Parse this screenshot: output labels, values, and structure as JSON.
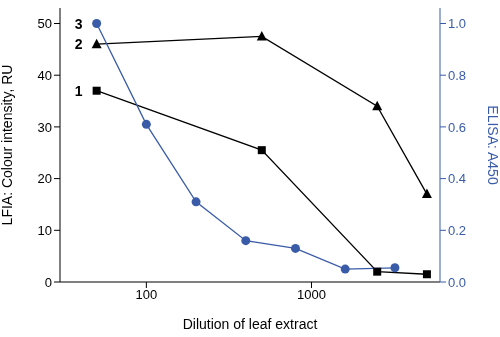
{
  "chart_data": {
    "type": "line",
    "x_label": "Dilution of leaf extract",
    "y_label": "LFIA: Colour intensity, RU",
    "y2_label": "ELISA: A450",
    "log": "x",
    "grid": false,
    "xlim": [
      30,
      6000
    ],
    "xticks": [
      100,
      1000
    ],
    "ylim": [
      0,
      53
    ],
    "yticks": [
      0,
      10,
      20,
      30,
      40,
      50
    ],
    "y2lim": [
      0,
      1.06
    ],
    "y2ticks": [
      {
        "value": 0,
        "label": "0.0"
      },
      {
        "value": 0.2,
        "label": "0.2"
      },
      {
        "value": 0.4,
        "label": "0.4"
      },
      {
        "value": 0.6,
        "label": "0.6"
      },
      {
        "value": 0.8,
        "label": "0.8"
      },
      {
        "value": 1,
        "label": "1.0"
      }
    ],
    "series": [
      {
        "name": "1",
        "color": "#000000",
        "marker": "square",
        "x": [
          50,
          500,
          2500,
          5000
        ],
        "values": [
          37,
          25.5,
          2,
          1.5
        ]
      },
      {
        "name": "2",
        "color": "#000000",
        "marker": "triangle",
        "x": [
          50,
          500,
          2500,
          5000
        ],
        "values": [
          46,
          47.5,
          34,
          17
        ]
      },
      {
        "name": "3",
        "color": "#3a5ca8",
        "marker": "circle",
        "axis": "y2",
        "x": [
          50,
          100,
          200,
          400,
          800,
          1600,
          3200
        ],
        "values": [
          1.0,
          0.61,
          0.31,
          0.16,
          0.13,
          0.05,
          0.055
        ]
      }
    ]
  }
}
